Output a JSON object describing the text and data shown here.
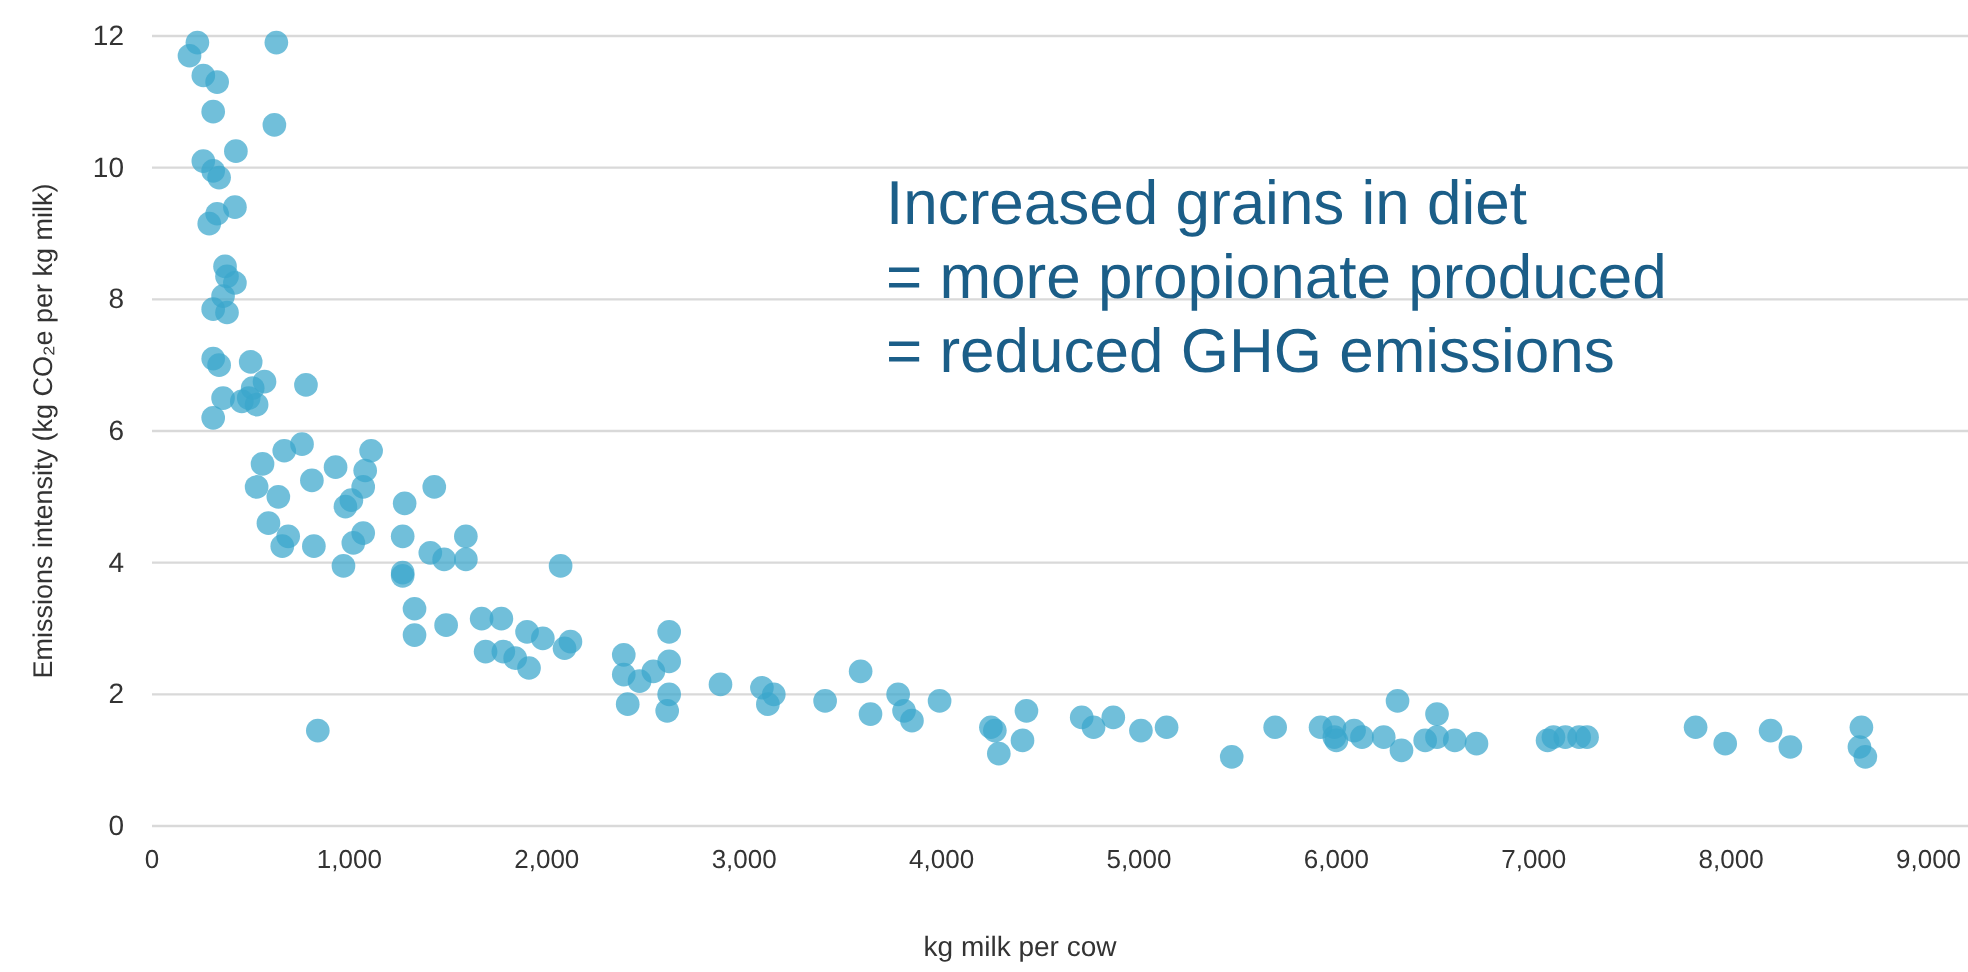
{
  "chart_data": {
    "type": "scatter",
    "xlabel": "kg milk per cow",
    "ylabel": "Emissions intensity (kg CO₂e per kg milk)",
    "annotations": [
      "Increased grains in diet\n= more propionate produced\n= reduced GHG emissions"
    ],
    "xlim": [
      0,
      9200
    ],
    "ylim": [
      0,
      12
    ],
    "xticks": [
      0,
      {
        "value": 1000,
        "label": "1,000"
      },
      {
        "value": 2000,
        "label": "2,000"
      },
      {
        "value": 3000,
        "label": "3,000"
      },
      {
        "value": 4000,
        "label": "4,000"
      },
      {
        "value": 5000,
        "label": "5,000"
      },
      {
        "value": 6000,
        "label": "6,000"
      },
      {
        "value": 7000,
        "label": "7,000"
      },
      {
        "value": 8000,
        "label": "8,000"
      },
      {
        "value": 9000,
        "label": "9,000"
      }
    ],
    "yticks": [
      0,
      2,
      4,
      6,
      8,
      10,
      12
    ],
    "grid": "y",
    "marker": "circle",
    "series": [
      {
        "color": "#3aa6cc",
        "x": [
          230,
          190,
          260,
          330,
          310,
          630,
          620,
          260,
          310,
          340,
          425,
          330,
          420,
          290,
          370,
          380,
          420,
          360,
          310,
          380,
          310,
          340,
          500,
          780,
          570,
          510,
          490,
          455,
          530,
          360,
          310,
          560,
          670,
          760,
          530,
          640,
          590,
          690,
          660,
          820,
          810,
          930,
          980,
          1010,
          1070,
          1080,
          1110,
          1070,
          1020,
          970,
          1280,
          1270,
          1270,
          1270,
          1430,
          1410,
          1480,
          1590,
          1590,
          2070,
          1330,
          1330,
          1490,
          1670,
          1770,
          1690,
          1780,
          1840,
          1900,
          1980,
          1910,
          2090,
          2120,
          2390,
          2390,
          2470,
          2410,
          2540,
          2620,
          2620,
          2620,
          2610,
          840,
          2880,
          3090,
          3150,
          3120,
          3410,
          3590,
          3640,
          3780,
          3810,
          3850,
          3990,
          4250,
          4270,
          4290,
          4410,
          4430,
          4710,
          4770,
          4870,
          5010,
          5140,
          5470,
          5690,
          5920,
          5990,
          5990,
          6000,
          6090,
          6130,
          6240,
          6310,
          6330,
          6450,
          6510,
          6510,
          6600,
          6710,
          7070,
          7100,
          7160,
          7230,
          7270,
          7820,
          7970,
          8200,
          8300,
          8660,
          8650,
          8680
        ],
        "values": [
          11.9,
          11.7,
          11.4,
          11.3,
          10.85,
          11.9,
          10.65,
          10.1,
          9.95,
          9.85,
          10.25,
          9.3,
          9.4,
          9.15,
          8.5,
          8.35,
          8.25,
          8.05,
          7.85,
          7.8,
          7.1,
          7.0,
          7.05,
          6.7,
          6.75,
          6.65,
          6.5,
          6.45,
          6.4,
          6.5,
          6.2,
          5.5,
          5.7,
          5.8,
          5.15,
          5.0,
          4.6,
          4.4,
          4.25,
          4.25,
          5.25,
          5.45,
          4.85,
          4.95,
          5.15,
          5.4,
          5.7,
          4.45,
          4.3,
          3.95,
          4.9,
          4.4,
          3.85,
          3.8,
          5.15,
          4.15,
          4.05,
          4.4,
          4.05,
          3.95,
          3.3,
          2.9,
          3.05,
          3.15,
          3.15,
          2.65,
          2.65,
          2.55,
          2.95,
          2.85,
          2.4,
          2.7,
          2.8,
          2.6,
          2.3,
          2.2,
          1.85,
          2.35,
          2.5,
          2.95,
          2.0,
          1.75,
          1.45,
          2.15,
          2.1,
          2.0,
          1.85,
          1.9,
          2.35,
          1.7,
          2.0,
          1.75,
          1.6,
          1.9,
          1.5,
          1.45,
          1.1,
          1.3,
          1.75,
          1.65,
          1.5,
          1.65,
          1.45,
          1.5,
          1.05,
          1.5,
          1.5,
          1.35,
          1.5,
          1.3,
          1.45,
          1.35,
          1.35,
          1.9,
          1.15,
          1.3,
          1.7,
          1.35,
          1.3,
          1.25,
          1.3,
          1.35,
          1.35,
          1.35,
          1.35,
          1.5,
          1.25,
          1.45,
          1.2,
          1.5,
          1.2,
          1.05
        ]
      }
    ]
  }
}
